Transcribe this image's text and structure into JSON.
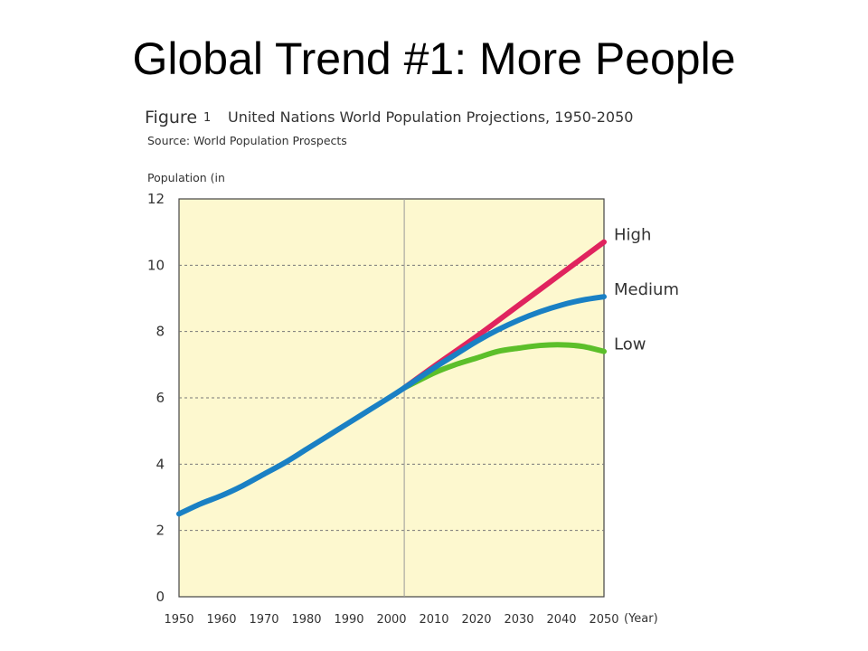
{
  "slide": {
    "title": "Global Trend #1: More People"
  },
  "chart_data": {
    "type": "line",
    "figure_label": "Figure",
    "figure_number": "1",
    "title": "United Nations World Population Projections, 1950-2050",
    "subtitle": "Source: World Population Prospects",
    "ylabel": "Population (in",
    "xlabel": "(Year)",
    "xlim": [
      1950,
      2050
    ],
    "ylim": [
      0,
      12
    ],
    "xticks": [
      1950,
      1960,
      1970,
      1980,
      1990,
      2000,
      2010,
      2020,
      2030,
      2040,
      2050
    ],
    "yticks": [
      0,
      2,
      4,
      6,
      8,
      10,
      12
    ],
    "grid": "dashed-horizontal",
    "marker_year": 2003,
    "colors": {
      "background": "#fdf8cf",
      "high": "#e0245e",
      "medium": "#1a80c4",
      "low": "#5cbf2a"
    },
    "series": [
      {
        "name": "Medium",
        "color": "#1a80c4",
        "x": [
          1950,
          1955,
          1960,
          1965,
          1970,
          1975,
          1980,
          1985,
          1990,
          1995,
          2000,
          2003,
          2010,
          2015,
          2020,
          2025,
          2030,
          2035,
          2040,
          2045,
          2050
        ],
        "y": [
          2.5,
          2.8,
          3.05,
          3.35,
          3.7,
          4.05,
          4.45,
          4.85,
          5.25,
          5.65,
          6.05,
          6.3,
          6.9,
          7.3,
          7.7,
          8.05,
          8.35,
          8.6,
          8.8,
          8.95,
          9.05
        ]
      },
      {
        "name": "High",
        "color": "#e0245e",
        "x": [
          2003,
          2010,
          2020,
          2030,
          2040,
          2050
        ],
        "y": [
          6.3,
          6.95,
          7.85,
          8.8,
          9.75,
          10.7
        ]
      },
      {
        "name": "Low",
        "color": "#5cbf2a",
        "x": [
          2003,
          2010,
          2015,
          2020,
          2025,
          2030,
          2035,
          2040,
          2045,
          2050
        ],
        "y": [
          6.3,
          6.75,
          7.0,
          7.2,
          7.4,
          7.5,
          7.58,
          7.6,
          7.55,
          7.4
        ]
      }
    ]
  }
}
